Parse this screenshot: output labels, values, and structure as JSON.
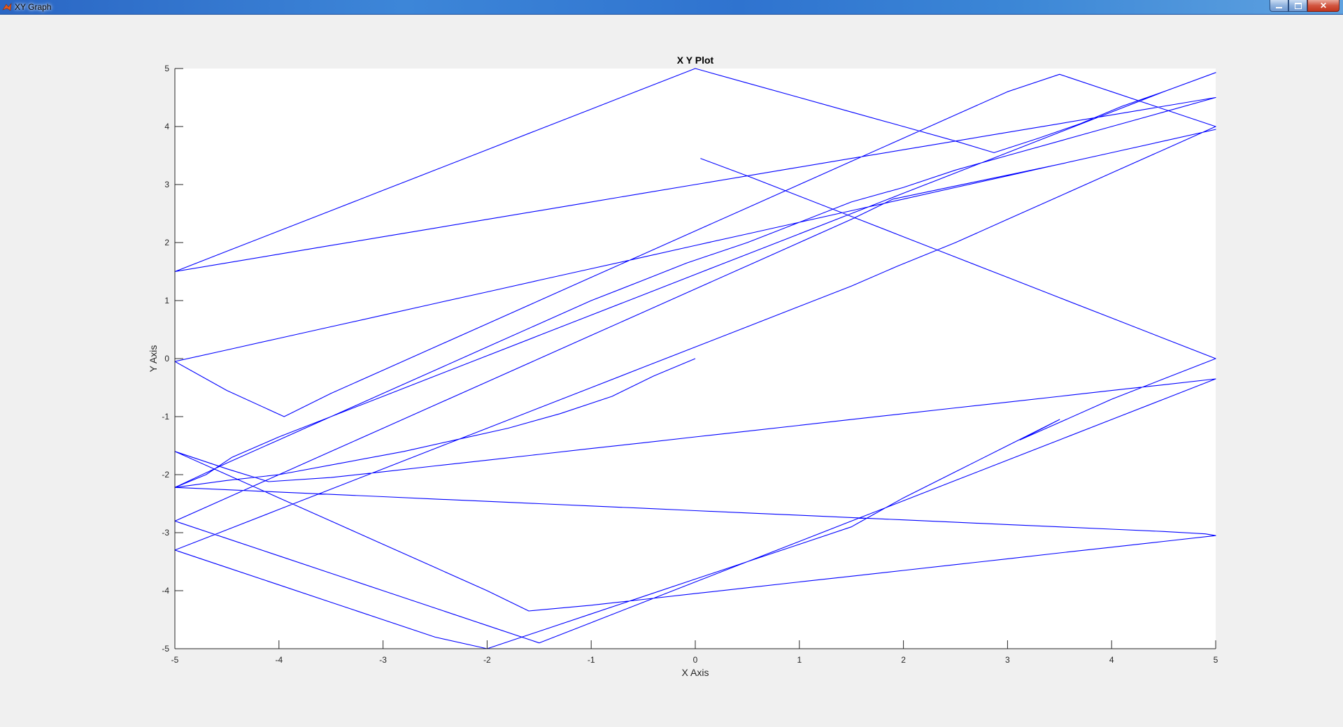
{
  "window": {
    "title": "XY Graph",
    "icon": "matlab-icon",
    "buttons": {
      "minimize": "minimize-icon",
      "maximize": "maximize-icon",
      "close": "close-icon"
    }
  },
  "chart_data": {
    "type": "line",
    "title": "X Y Plot",
    "xlabel": "X Axis",
    "ylabel": "Y Axis",
    "xlim": [
      -5,
      5
    ],
    "ylim": [
      -5,
      5
    ],
    "xticks": [
      -5,
      -4,
      -3,
      -2,
      -1,
      0,
      1,
      2,
      3,
      4,
      5
    ],
    "yticks": [
      -5,
      -4,
      -3,
      -2,
      -1,
      0,
      1,
      2,
      3,
      4,
      5
    ],
    "grid": false,
    "line_color": "#0000ff",
    "series": [
      {
        "x": [
          0.0,
          -0.4,
          -0.8,
          -1.3,
          -1.8,
          -2.3,
          -2.8,
          -3.4,
          -4.0,
          -4.5,
          -5.0,
          -4.5,
          -4.0,
          -3.5,
          -3.0,
          -2.5,
          -2.0,
          -1.5,
          -1.0,
          -0.5,
          -0.08,
          0.5,
          1.0,
          1.5,
          2.0,
          2.5,
          3.0,
          3.5,
          4.0,
          4.5,
          5.0,
          4.5,
          4.0,
          3.5,
          3.0,
          2.5,
          2.0,
          1.5,
          1.0,
          0.5,
          0.0,
          -0.5,
          -1.0,
          -1.5,
          -2.0,
          -2.5,
          -3.0,
          -3.5,
          -4.0,
          -4.5,
          -5.0,
          -4.5,
          -4.0,
          -3.5,
          -3.0,
          -2.5,
          -2.0,
          -1.5,
          -1.0,
          -0.5,
          0.0,
          0.5,
          1.0,
          1.5,
          2.0,
          2.5,
          2.87,
          3.3,
          3.7,
          4.1,
          4.5,
          5.0,
          4.5,
          4.0,
          3.5,
          3.0,
          2.5,
          2.0,
          1.5,
          1.0,
          0.5,
          0.0,
          -0.5,
          -1.0,
          -1.5,
          -2.0,
          -2.5,
          -3.0,
          -3.5,
          -4.0,
          -4.45,
          -4.7,
          -5.0,
          -4.5,
          -4.0,
          -3.5,
          -3.0,
          -2.5,
          -2.0,
          -1.5,
          -1.0,
          -0.5,
          0.0,
          0.5,
          1.0,
          1.5,
          2.0,
          2.5,
          3.0,
          3.5,
          4.0,
          4.5,
          4.9,
          5.0,
          4.5,
          4.0,
          3.5,
          3.0,
          2.5,
          2.0,
          1.5,
          1.0,
          0.5,
          0.0,
          -0.5,
          -1.0,
          -1.6,
          -2.0,
          -2.5,
          -3.0,
          -3.5,
          -4.0,
          -4.5,
          -5.0,
          -4.5,
          -4.1,
          -3.5,
          -3.0,
          -2.5,
          -2.0,
          -1.5,
          -1.0,
          -0.5,
          0.0,
          0.5,
          1.0,
          1.5,
          2.0,
          2.5,
          3.0,
          3.5,
          4.0,
          4.5,
          5.0,
          4.5,
          4.0,
          3.5,
          3.0,
          2.5,
          2.0,
          1.5,
          1.0,
          0.5,
          0.0,
          -0.5,
          -1.0,
          -1.5,
          -2.0,
          -2.5,
          -3.0,
          -3.5,
          -4.0,
          -4.5,
          -5.0,
          -4.5,
          -4.0,
          -3.5,
          -3.0,
          -2.5,
          -2.0,
          -1.5,
          -1.0,
          -0.5,
          0.0,
          0.5,
          1.0,
          1.5,
          1.9,
          2.3,
          2.7,
          3.1,
          3.5,
          4.0,
          4.5,
          5.0,
          4.5,
          4.0,
          3.5,
          3.0,
          2.5,
          2.0,
          1.5,
          1.0,
          0.5,
          0.0,
          -0.5,
          -1.0,
          -1.5,
          -2.0,
          -2.5,
          -3.0,
          -3.5,
          -4.0,
          -4.5,
          -5.0,
          -4.5,
          -3.95,
          -3.5,
          -3.0,
          -2.5,
          -2.0,
          -1.5,
          -1.0,
          -0.5,
          0.0,
          0.5,
          1.0,
          1.5,
          2.0,
          2.5,
          3.0,
          3.5,
          4.0,
          4.5,
          5.0,
          4.5,
          4.0,
          3.5,
          3.0,
          2.5,
          1.95,
          1.5,
          1.0,
          0.5,
          0.0,
          -0.5,
          -1.0,
          -1.5,
          -2.0,
          -2.5,
          -3.0,
          -3.5,
          -4.0,
          -4.5,
          -5.0,
          -4.5,
          -4.0,
          -3.5,
          -3.0,
          -2.5,
          -2.0,
          -1.5,
          -1.0,
          -0.5,
          0.0,
          0.5,
          1.0,
          1.5,
          1.55,
          2.0,
          2.5,
          3.0,
          3.5,
          3.12,
          3.5,
          4.0,
          4.5,
          5.0,
          4.5,
          4.0,
          3.5,
          3.0,
          2.5,
          2.0,
          1.5,
          1.0,
          0.5,
          0.05
        ],
        "y": [
          0.0,
          -0.3,
          -0.65,
          -0.95,
          -1.2,
          -1.4,
          -1.6,
          -1.8,
          -2.0,
          -2.1,
          -2.22,
          -1.8,
          -1.4,
          -1.0,
          -0.6,
          -0.2,
          0.2,
          0.6,
          1.0,
          1.35,
          1.65,
          2.0,
          2.35,
          2.7,
          2.95,
          3.25,
          3.5,
          3.75,
          4.0,
          4.25,
          4.5,
          4.35,
          4.2,
          4.05,
          3.9,
          3.75,
          3.6,
          3.45,
          3.3,
          3.15,
          3.0,
          2.85,
          2.7,
          2.55,
          2.4,
          2.25,
          2.1,
          1.95,
          1.8,
          1.65,
          1.5,
          1.85,
          2.2,
          2.55,
          2.9,
          3.25,
          3.6,
          3.95,
          4.3,
          4.65,
          5.0,
          4.75,
          4.5,
          4.25,
          4.0,
          3.75,
          3.55,
          3.8,
          4.05,
          4.35,
          4.6,
          4.93,
          4.6,
          4.25,
          3.9,
          3.55,
          3.2,
          2.85,
          2.5,
          2.15,
          1.8,
          1.45,
          1.1,
          0.75,
          0.4,
          0.05,
          -0.3,
          -0.65,
          -1.0,
          -1.35,
          -1.7,
          -2.0,
          -2.22,
          -2.26,
          -2.3,
          -2.34,
          -2.38,
          -2.42,
          -2.46,
          -2.5,
          -2.54,
          -2.58,
          -2.62,
          -2.66,
          -2.7,
          -2.74,
          -2.78,
          -2.82,
          -2.86,
          -2.9,
          -2.94,
          -2.98,
          -3.02,
          -3.05,
          -3.15,
          -3.25,
          -3.35,
          -3.45,
          -3.55,
          -3.65,
          -3.75,
          -3.85,
          -3.95,
          -4.05,
          -4.15,
          -4.25,
          -4.35,
          -4.0,
          -3.6,
          -3.2,
          -2.8,
          -2.4,
          -2.0,
          -1.6,
          -1.9,
          -2.12,
          -2.05,
          -1.95,
          -1.85,
          -1.75,
          -1.65,
          -1.55,
          -1.45,
          -1.35,
          -1.25,
          -1.15,
          -1.05,
          -0.95,
          -0.85,
          -0.75,
          -0.65,
          -0.55,
          -0.45,
          -0.35,
          -0.7,
          -1.05,
          -1.4,
          -1.75,
          -2.1,
          -2.45,
          -2.8,
          -3.15,
          -3.5,
          -3.85,
          -4.2,
          -4.55,
          -4.9,
          -4.6,
          -4.3,
          -4.0,
          -3.7,
          -3.4,
          -3.1,
          -2.8,
          -2.4,
          -2.0,
          -1.6,
          -1.2,
          -0.8,
          -0.4,
          0.0,
          0.4,
          0.8,
          1.2,
          1.6,
          2.0,
          2.4,
          2.75,
          2.9,
          3.05,
          3.2,
          3.35,
          3.55,
          3.75,
          3.95,
          3.75,
          3.55,
          3.35,
          3.15,
          2.95,
          2.75,
          2.55,
          2.35,
          2.15,
          1.95,
          1.75,
          1.55,
          1.35,
          1.15,
          0.95,
          0.75,
          0.55,
          0.35,
          0.15,
          -0.05,
          -0.55,
          -1.0,
          -0.6,
          -0.2,
          0.2,
          0.6,
          1.0,
          1.4,
          1.8,
          2.2,
          2.6,
          3.0,
          3.4,
          3.8,
          4.2,
          4.6,
          4.9,
          4.6,
          4.3,
          4.0,
          3.6,
          3.2,
          2.8,
          2.4,
          2.0,
          1.6,
          1.25,
          0.9,
          0.55,
          0.2,
          -0.15,
          -0.5,
          -0.85,
          -1.2,
          -1.55,
          -1.9,
          -2.25,
          -2.6,
          -2.95,
          -3.3,
          -3.6,
          -3.9,
          -4.2,
          -4.5,
          -4.8,
          -5.0,
          -4.7,
          -4.4,
          -4.1,
          -3.8,
          -3.5,
          -3.2,
          -2.9,
          -2.85,
          -2.4,
          -1.95,
          -1.5,
          -1.05,
          -1.4,
          -1.1,
          -0.7,
          -0.35,
          0.0,
          0.35,
          0.7,
          1.05,
          1.4,
          1.75,
          2.1,
          2.45,
          2.8,
          3.15,
          3.45
        ]
      }
    ]
  }
}
